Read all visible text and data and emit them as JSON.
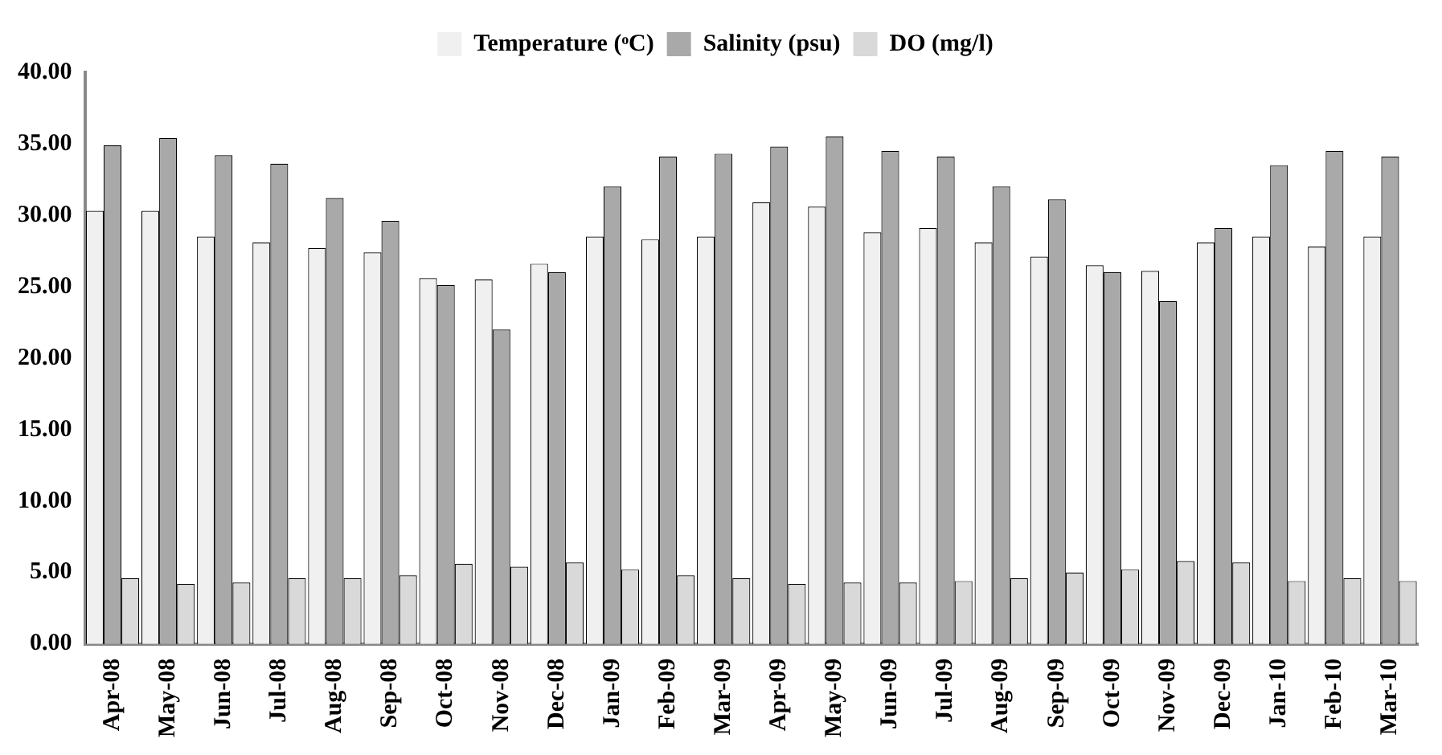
{
  "chart_data": {
    "type": "bar",
    "categories": [
      "Apr-08",
      "May-08",
      "Jun-08",
      "Jul-08",
      "Aug-08",
      "Sep-08",
      "Oct-08",
      "Nov-08",
      "Dec-08",
      "Jan-09",
      "Feb-09",
      "Mar-09",
      "Apr-09",
      "May-09",
      "Jun-09",
      "Jul-09",
      "Aug-09",
      "Sep-09",
      "Oct-09",
      "Nov-09",
      "Dec-09",
      "Jan-10",
      "Feb-10",
      "Mar-10"
    ],
    "series": [
      {
        "name": "Temperature (ᵒC)",
        "color": "#f0f0f0",
        "values": [
          30.3,
          30.3,
          28.5,
          28.1,
          27.7,
          27.4,
          25.6,
          25.5,
          26.6,
          28.5,
          28.3,
          28.5,
          30.9,
          30.6,
          28.8,
          29.1,
          28.1,
          27.1,
          26.5,
          26.1,
          28.1,
          28.5,
          27.8,
          28.5
        ]
      },
      {
        "name": "Salinity (psu)",
        "color": "#a9a9a9",
        "values": [
          34.9,
          35.4,
          34.2,
          33.6,
          31.2,
          29.6,
          25.1,
          22.0,
          26.0,
          32.0,
          34.1,
          34.3,
          34.8,
          35.5,
          34.5,
          34.1,
          32.0,
          31.1,
          26.0,
          24.0,
          29.1,
          33.5,
          34.5,
          34.1
        ]
      },
      {
        "name": "DO (mg/l)",
        "color": "#d9d9d9",
        "values": [
          4.6,
          4.2,
          4.3,
          4.6,
          4.6,
          4.8,
          5.6,
          5.4,
          5.7,
          5.2,
          4.8,
          4.6,
          4.2,
          4.3,
          4.3,
          4.4,
          4.6,
          5.0,
          5.2,
          5.8,
          5.7,
          4.4,
          4.6,
          4.4
        ]
      }
    ],
    "ylim": [
      0,
      40
    ],
    "yticks": [
      {
        "value": 0,
        "label": "0.00"
      },
      {
        "value": 5,
        "label": "5.00"
      },
      {
        "value": 10,
        "label": "10.00"
      },
      {
        "value": 15,
        "label": "15.00"
      },
      {
        "value": 20,
        "label": "20.00"
      },
      {
        "value": 25,
        "label": "25.00"
      },
      {
        "value": 30,
        "label": "30.00"
      },
      {
        "value": 35,
        "label": "35.00"
      },
      {
        "value": 40,
        "label": "40.00"
      }
    ],
    "grid": false,
    "legend": "top"
  }
}
